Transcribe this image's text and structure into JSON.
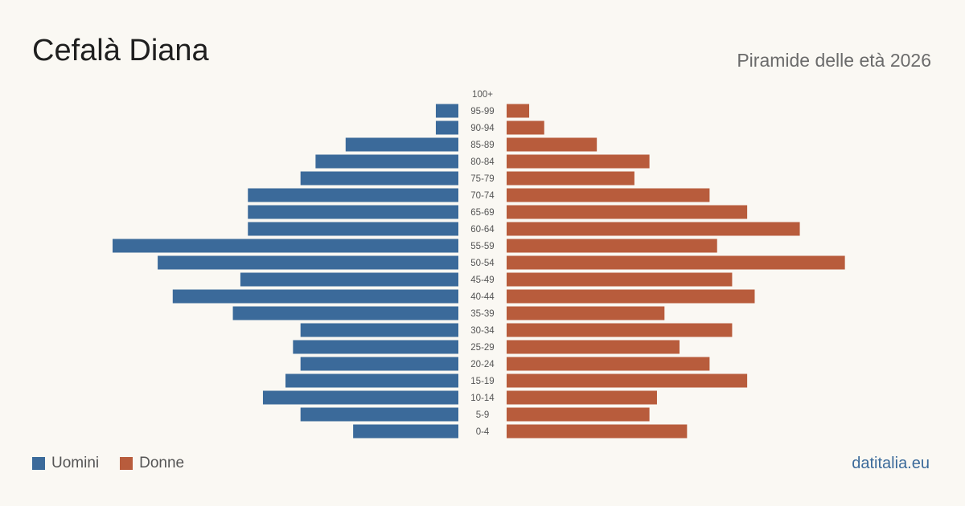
{
  "title": "Cefalà Diana",
  "subtitle": "Piramide delle età 2026",
  "brand": "datitalia.eu",
  "colors": {
    "men": "#3b6a9a",
    "women": "#b85c3c",
    "background": "#faf8f3"
  },
  "legend": {
    "men_label": "Uomini",
    "women_label": "Donne"
  },
  "chart_data": {
    "type": "bar",
    "orientation": "horizontal-pyramid",
    "categories": [
      "100+",
      "95-99",
      "90-94",
      "85-89",
      "80-84",
      "75-79",
      "70-74",
      "65-69",
      "60-64",
      "55-59",
      "50-54",
      "45-49",
      "40-44",
      "35-39",
      "30-34",
      "25-29",
      "20-24",
      "15-19",
      "10-14",
      "5-9",
      "0-4"
    ],
    "series": [
      {
        "name": "Uomini",
        "values": [
          0,
          3,
          3,
          15,
          19,
          21,
          28,
          28,
          28,
          46,
          40,
          29,
          38,
          30,
          21,
          22,
          21,
          23,
          26,
          21,
          14
        ]
      },
      {
        "name": "Donne",
        "values": [
          0,
          3,
          5,
          12,
          19,
          17,
          27,
          32,
          39,
          28,
          45,
          30,
          33,
          21,
          30,
          23,
          27,
          32,
          20,
          19,
          24
        ]
      }
    ],
    "max_value": 46,
    "legend_position": "bottom-left"
  }
}
